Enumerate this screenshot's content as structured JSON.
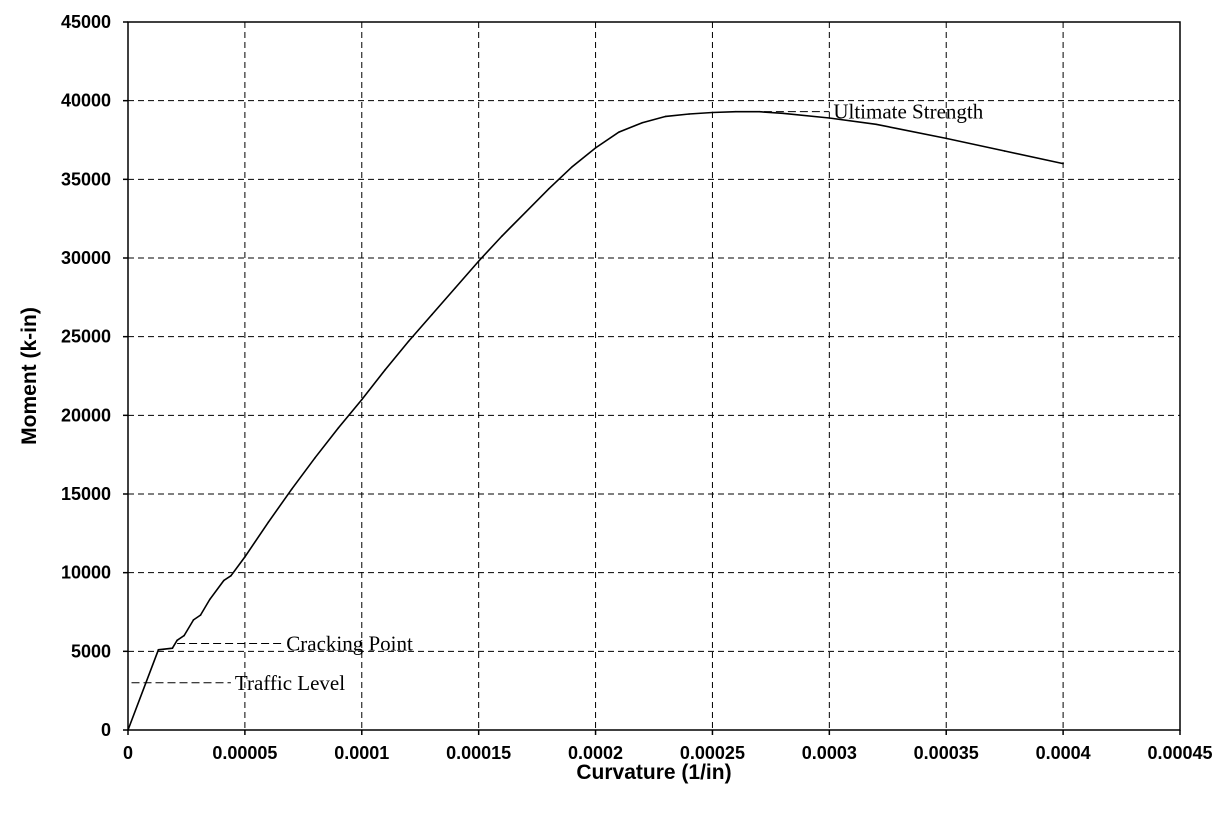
{
  "chart_data": {
    "type": "line",
    "title": "",
    "xlabel": "Curvature (1/in)",
    "ylabel": "Moment (k-in)",
    "xlim": [
      0,
      0.00045
    ],
    "ylim": [
      0,
      45000
    ],
    "xticks": [
      0,
      5e-05,
      0.0001,
      0.00015,
      0.0002,
      0.00025,
      0.0003,
      0.00035,
      0.0004,
      0.00045
    ],
    "xtick_labels": [
      "0",
      "0.00005",
      "0.0001",
      "0.00015",
      "0.0002",
      "0.00025",
      "0.0003",
      "0.00035",
      "0.0004",
      "0.00045"
    ],
    "yticks": [
      0,
      5000,
      10000,
      15000,
      20000,
      25000,
      30000,
      35000,
      40000,
      45000
    ],
    "ytick_labels": [
      "0",
      "5000",
      "10000",
      "15000",
      "20000",
      "25000",
      "30000",
      "35000",
      "40000",
      "45000"
    ],
    "grid": true,
    "legend": "none",
    "series": [
      {
        "x": [
          0,
          1.3e-05,
          1.9e-05,
          2.1e-05,
          2.4e-05,
          2.8e-05,
          3.1e-05,
          3.5e-05,
          4.1e-05,
          4.4e-05,
          5e-05,
          6e-05,
          7e-05,
          8e-05,
          9e-05,
          0.0001,
          0.00011,
          0.00012,
          0.00013,
          0.00014,
          0.00015,
          0.00016,
          0.00017,
          0.00018,
          0.00019,
          0.0002,
          0.00021,
          0.00022,
          0.00023,
          0.00024,
          0.00025,
          0.00026,
          0.00027,
          0.00028,
          0.0003,
          0.00032,
          0.00035,
          0.000375,
          0.0004
        ],
        "y": [
          0,
          5100,
          5200,
          5700,
          6000,
          7000,
          7300,
          8300,
          9500,
          9800,
          11000,
          13200,
          15300,
          17300,
          19200,
          21000,
          22900,
          24700,
          26400,
          28100,
          29800,
          31400,
          32900,
          34400,
          35800,
          37000,
          38000,
          38600,
          39000,
          39150,
          39250,
          39300,
          39300,
          39200,
          38900,
          38500,
          37600,
          36800,
          36000
        ]
      }
    ],
    "annotations": [
      {
        "text": "Ultimate Strength",
        "x": 0.000272,
        "y": 39300,
        "x_end": 0.0003
      },
      {
        "text": "Cracking Point",
        "x": 2.1e-05,
        "y": 5500,
        "x_end": 6.6e-05
      },
      {
        "text": "Traffic Level",
        "x": 1.5e-06,
        "y": 3000,
        "x_end": 4.4e-05
      }
    ]
  }
}
